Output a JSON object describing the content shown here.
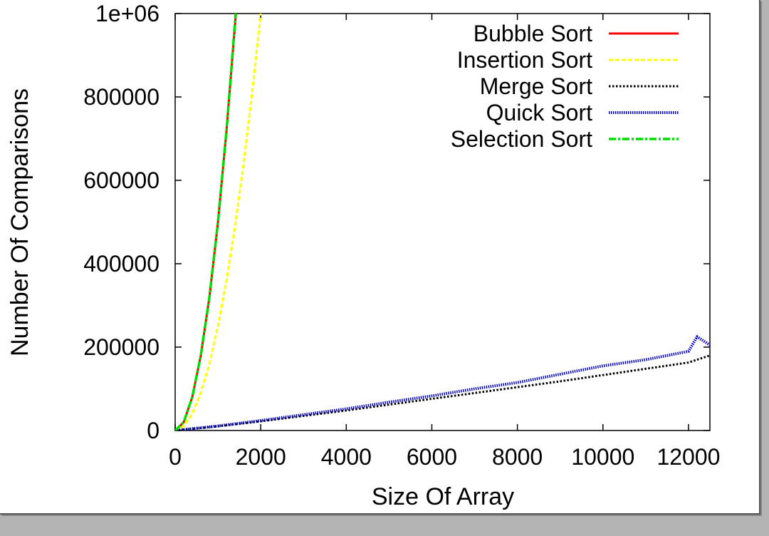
{
  "chart_data": {
    "type": "line",
    "title": "",
    "xlabel": "Size Of Array",
    "ylabel": "Number Of Comparisons",
    "xlim": [
      0,
      12500
    ],
    "ylim": [
      0,
      1000000
    ],
    "x_ticks": [
      0,
      2000,
      4000,
      6000,
      8000,
      10000,
      12000
    ],
    "x_tick_labels": [
      "0",
      "2000",
      "4000",
      "6000",
      "8000",
      "10000",
      "12000"
    ],
    "y_ticks": [
      0,
      200000,
      400000,
      600000,
      800000,
      1000000
    ],
    "y_tick_labels": [
      "0",
      "200000",
      "400000",
      "600000",
      "800000",
      "1e+06"
    ],
    "grid": false,
    "legend_position": "top-right",
    "series": [
      {
        "name": "Bubble Sort",
        "color": "#ff0000",
        "style": "solid",
        "x": [
          0,
          200,
          400,
          600,
          800,
          1000,
          1200,
          1420
        ],
        "y": [
          0,
          19900,
          79800,
          179700,
          319600,
          499500,
          719400,
          1000000
        ]
      },
      {
        "name": "Insertion Sort",
        "color": "#ffff00",
        "style": "dashed",
        "x": [
          0,
          200,
          400,
          600,
          800,
          1000,
          1200,
          1400,
          1600,
          1800,
          2000
        ],
        "y": [
          0,
          10000,
          40000,
          90000,
          160000,
          250000,
          360000,
          490000,
          640000,
          810000,
          1000000
        ]
      },
      {
        "name": "Merge Sort",
        "color": "#000000",
        "style": "dotted",
        "x": [
          0,
          1000,
          2000,
          3000,
          4000,
          5000,
          6000,
          7000,
          8000,
          9000,
          10000,
          11000,
          12000,
          12500
        ],
        "y": [
          0,
          10000,
          22000,
          35000,
          48000,
          62000,
          76000,
          90000,
          104000,
          118000,
          133000,
          148000,
          163000,
          180000
        ]
      },
      {
        "name": "Quick Sort",
        "color": "#0000cc",
        "style": "dense-dotted",
        "x": [
          0,
          1000,
          2000,
          3000,
          4000,
          5000,
          6000,
          7000,
          8000,
          9000,
          10000,
          11000,
          12000,
          12200,
          12500
        ],
        "y": [
          0,
          11000,
          24000,
          38000,
          52000,
          68000,
          83000,
          100000,
          115000,
          135000,
          155000,
          170000,
          190000,
          225000,
          205000
        ]
      },
      {
        "name": "Selection Sort",
        "color": "#00dd00",
        "style": "dash-dot",
        "x": [
          0,
          200,
          400,
          600,
          800,
          1000,
          1200,
          1415
        ],
        "y": [
          0,
          19900,
          79800,
          179700,
          319600,
          499500,
          719400,
          1000000
        ]
      }
    ]
  }
}
